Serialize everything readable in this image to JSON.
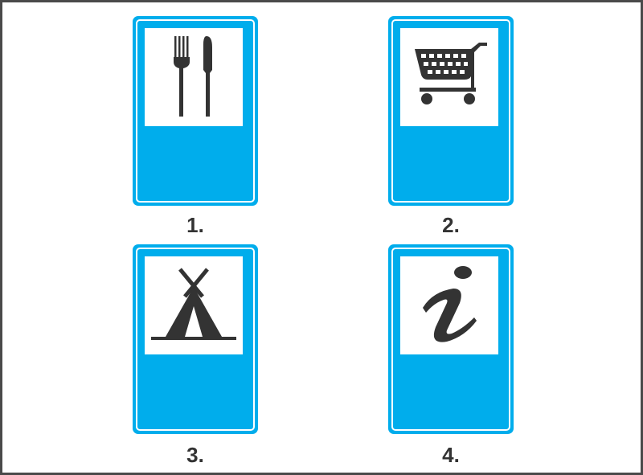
{
  "colors": {
    "sign_blue": "#00adec",
    "symbol": "#333333",
    "frame_border": "#4a4a4a"
  },
  "signs": [
    {
      "caption": "1.",
      "icon": "restaurant-fork-knife-icon"
    },
    {
      "caption": "2.",
      "icon": "shopping-cart-icon"
    },
    {
      "caption": "3.",
      "icon": "camping-tent-icon"
    },
    {
      "caption": "4.",
      "icon": "information-i-icon"
    }
  ]
}
